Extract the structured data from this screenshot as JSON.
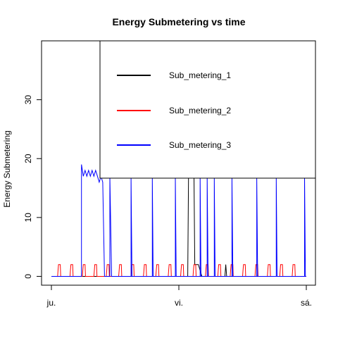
{
  "chart_data": {
    "type": "line",
    "title": "Energy Submetering vs time",
    "xlabel": "",
    "ylabel": "Energy Submetering",
    "x_ticks": [
      "ju.",
      "vi.",
      "sá."
    ],
    "xlim": [
      0,
      2880
    ],
    "ylim": [
      -1.5,
      40
    ],
    "y_ticks": [
      0,
      10,
      20,
      30
    ],
    "legend_position": "top-right",
    "series": [
      {
        "name": "Sub_metering_1",
        "color": "#000000",
        "values": [
          [
            0,
            0
          ],
          [
            1540,
            0
          ],
          [
            1560,
            38
          ],
          [
            1580,
            37
          ],
          [
            1600,
            36
          ],
          [
            1620,
            2
          ],
          [
            1660,
            2
          ],
          [
            1700,
            0
          ],
          [
            1960,
            0
          ],
          [
            1970,
            2
          ],
          [
            1980,
            0
          ],
          [
            2880,
            0
          ]
        ]
      },
      {
        "name": "Sub_metering_2",
        "color": "#ff0000",
        "values": [
          [
            0,
            0
          ],
          [
            70,
            0
          ],
          [
            75,
            1
          ],
          [
            80,
            2
          ],
          [
            100,
            2
          ],
          [
            105,
            0
          ],
          [
            210,
            0
          ],
          [
            215,
            1
          ],
          [
            220,
            2
          ],
          [
            240,
            2
          ],
          [
            245,
            0
          ],
          [
            350,
            0
          ],
          [
            355,
            1
          ],
          [
            360,
            2
          ],
          [
            380,
            2
          ],
          [
            385,
            0
          ],
          [
            480,
            0
          ],
          [
            485,
            1
          ],
          [
            490,
            2
          ],
          [
            510,
            2
          ],
          [
            515,
            0
          ],
          [
            620,
            0
          ],
          [
            625,
            1
          ],
          [
            630,
            2
          ],
          [
            650,
            2
          ],
          [
            655,
            0
          ],
          [
            760,
            0
          ],
          [
            765,
            1
          ],
          [
            770,
            2
          ],
          [
            790,
            2
          ],
          [
            795,
            0
          ],
          [
            900,
            0
          ],
          [
            905,
            1
          ],
          [
            910,
            2
          ],
          [
            930,
            2
          ],
          [
            935,
            0
          ],
          [
            1040,
            0
          ],
          [
            1045,
            1
          ],
          [
            1050,
            2
          ],
          [
            1070,
            2
          ],
          [
            1075,
            0
          ],
          [
            1180,
            0
          ],
          [
            1185,
            1
          ],
          [
            1190,
            2
          ],
          [
            1210,
            2
          ],
          [
            1215,
            0
          ],
          [
            1320,
            0
          ],
          [
            1325,
            1
          ],
          [
            1330,
            2
          ],
          [
            1350,
            2
          ],
          [
            1355,
            0
          ],
          [
            1460,
            0
          ],
          [
            1465,
            1
          ],
          [
            1470,
            2
          ],
          [
            1490,
            2
          ],
          [
            1495,
            0
          ],
          [
            1600,
            0
          ],
          [
            1605,
            1
          ],
          [
            1610,
            2
          ],
          [
            1630,
            2
          ],
          [
            1635,
            0
          ],
          [
            1740,
            0
          ],
          [
            1745,
            1
          ],
          [
            1750,
            2
          ],
          [
            1770,
            2
          ],
          [
            1775,
            0
          ],
          [
            1880,
            0
          ],
          [
            1885,
            1
          ],
          [
            1890,
            2
          ],
          [
            1910,
            2
          ],
          [
            1915,
            0
          ],
          [
            2020,
            0
          ],
          [
            2025,
            1
          ],
          [
            2030,
            2
          ],
          [
            2050,
            2
          ],
          [
            2055,
            0
          ],
          [
            2160,
            0
          ],
          [
            2165,
            1
          ],
          [
            2170,
            2
          ],
          [
            2190,
            2
          ],
          [
            2195,
            0
          ],
          [
            2300,
            0
          ],
          [
            2305,
            1
          ],
          [
            2310,
            2
          ],
          [
            2330,
            2
          ],
          [
            2335,
            0
          ],
          [
            2440,
            0
          ],
          [
            2445,
            1
          ],
          [
            2450,
            2
          ],
          [
            2470,
            2
          ],
          [
            2475,
            0
          ],
          [
            2580,
            0
          ],
          [
            2585,
            1
          ],
          [
            2590,
            2
          ],
          [
            2610,
            2
          ],
          [
            2615,
            0
          ],
          [
            2720,
            0
          ],
          [
            2725,
            1
          ],
          [
            2730,
            2
          ],
          [
            2750,
            2
          ],
          [
            2755,
            0
          ],
          [
            2880,
            0
          ]
        ]
      },
      {
        "name": "Sub_metering_3",
        "color": "#0000ff",
        "values": [
          [
            0,
            0
          ],
          [
            340,
            0
          ],
          [
            340,
            19
          ],
          [
            360,
            17
          ],
          [
            380,
            18
          ],
          [
            400,
            17
          ],
          [
            420,
            18
          ],
          [
            440,
            17
          ],
          [
            460,
            18
          ],
          [
            480,
            17
          ],
          [
            500,
            18
          ],
          [
            520,
            17
          ],
          [
            540,
            16
          ],
          [
            560,
            17
          ],
          [
            580,
            16
          ],
          [
            600,
            0
          ],
          [
            660,
            0
          ],
          [
            660,
            17
          ],
          [
            680,
            0
          ],
          [
            900,
            0
          ],
          [
            900,
            17
          ],
          [
            910,
            0
          ],
          [
            1140,
            0
          ],
          [
            1140,
            17
          ],
          [
            1150,
            0
          ],
          [
            1400,
            0
          ],
          [
            1400,
            17
          ],
          [
            1410,
            0
          ],
          [
            1680,
            0
          ],
          [
            1680,
            17
          ],
          [
            1690,
            0
          ],
          [
            1760,
            0
          ],
          [
            1760,
            17
          ],
          [
            1770,
            0
          ],
          [
            1840,
            0
          ],
          [
            1840,
            17
          ],
          [
            1850,
            0
          ],
          [
            2040,
            0
          ],
          [
            2040,
            17
          ],
          [
            2050,
            0
          ],
          [
            2320,
            0
          ],
          [
            2320,
            17
          ],
          [
            2330,
            0
          ],
          [
            2540,
            0
          ],
          [
            2540,
            17
          ],
          [
            2550,
            0
          ],
          [
            2860,
            0
          ],
          [
            2860,
            17
          ],
          [
            2870,
            0
          ],
          [
            2880,
            0
          ]
        ]
      }
    ]
  }
}
